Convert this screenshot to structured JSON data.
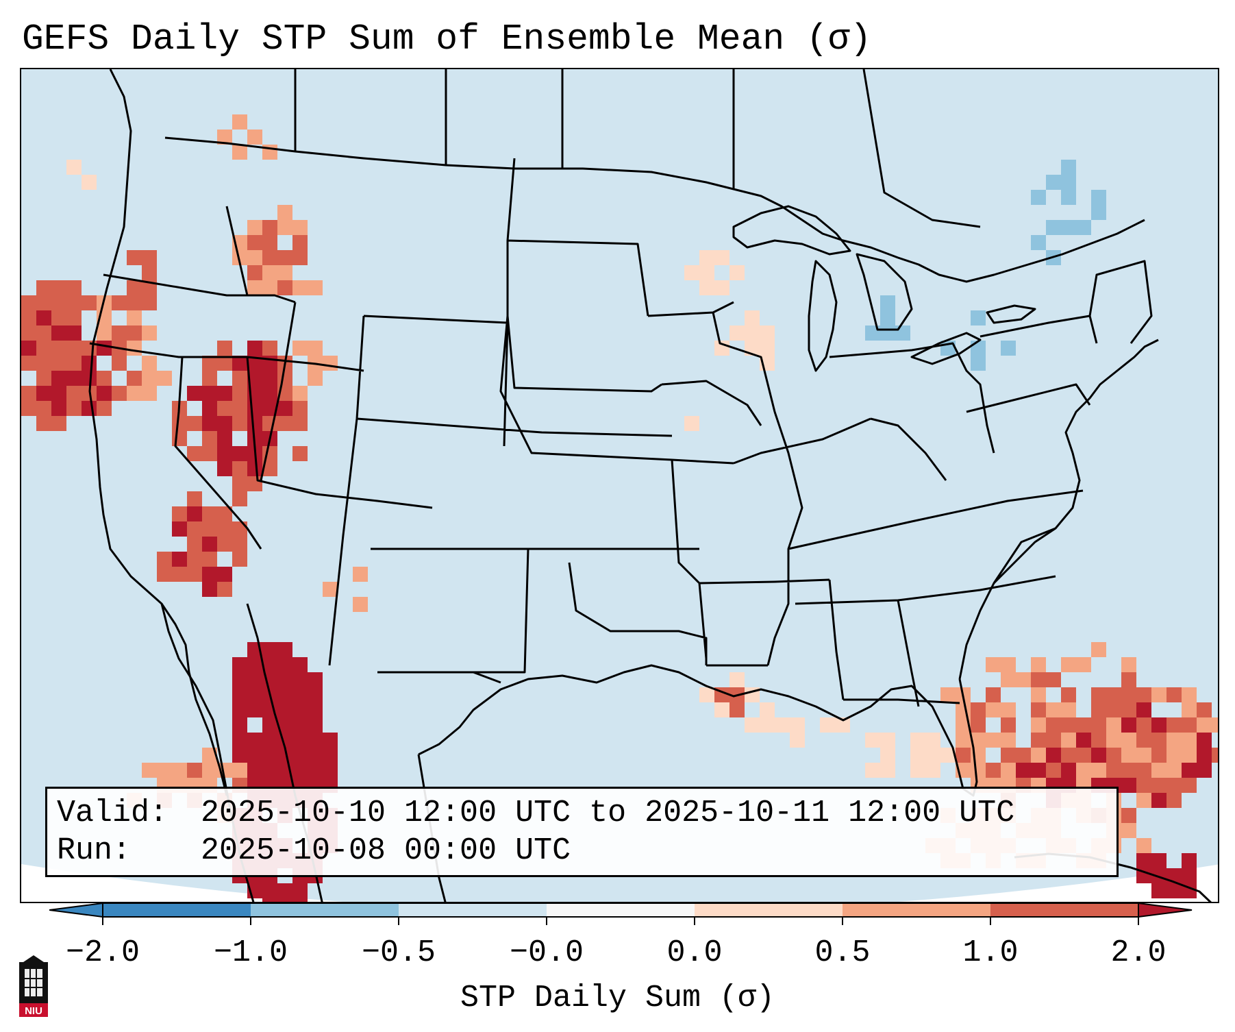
{
  "title": "GEFS Daily STP Sum of Ensemble Mean (σ)",
  "info": {
    "valid_label": "Valid:",
    "valid_value": "2025-10-10 12:00 UTC to 2025-10-11 12:00 UTC",
    "run_label": "Run:",
    "run_value": "2025-10-08 00:00 UTC"
  },
  "colorbar": {
    "label": "STP Daily Sum (σ)",
    "ticks": [
      "−2.0",
      "−1.0",
      "−0.5",
      "−0.0",
      "0.0",
      "0.5",
      "1.0",
      "2.0"
    ],
    "colors": [
      "#3a87c0",
      "#8fc3de",
      "#d1e5f0",
      "#f7f7f7",
      "#fddbc7",
      "#f4a582",
      "#d6604d",
      "#b2182b"
    ],
    "extend": "both"
  },
  "logo": {
    "text": "NIU",
    "color": "#c8102e"
  },
  "map": {
    "projection": "Lambert Conformal, CONUS",
    "background_color": "#d1e5f0",
    "regions": [
      {
        "name": "Pacific Northwest coast",
        "category": "1.0 to 2.0"
      },
      {
        "name": "Idaho",
        "category": "1.0 to 2.0"
      },
      {
        "name": "Nevada / northwest Utah",
        "category": "above 2.0"
      },
      {
        "name": "southern Nevada / Arizona border",
        "category": "above 2.0"
      },
      {
        "name": "Gulf of California / Sonora",
        "category": "above 2.0"
      },
      {
        "name": "Bahamas / western Atlantic",
        "category": "above 2.0"
      },
      {
        "name": "Louisiana coast",
        "category": "0.5 to 1.0"
      },
      {
        "name": "Great Lakes",
        "category": "-1.0 to -0.5"
      },
      {
        "name": "Quebec / Maine",
        "category": "-1.0 to -0.5"
      }
    ]
  }
}
